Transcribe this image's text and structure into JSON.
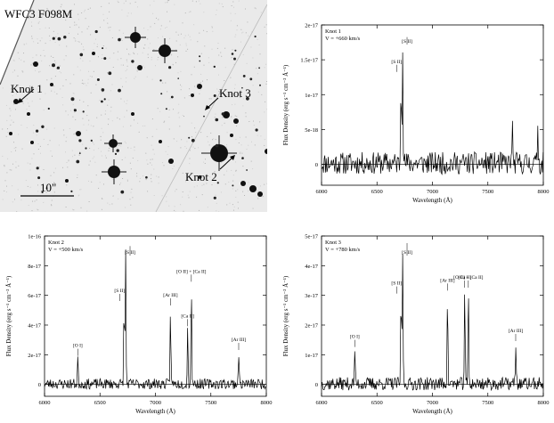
{
  "image_panel": {
    "filter_label": "WFC3 F098M",
    "scale_label": "10\"",
    "knots": [
      {
        "label": "Knot 1"
      },
      {
        "label": "Knot 2"
      },
      {
        "label": "Knot 3"
      }
    ]
  },
  "chart_data": [
    {
      "type": "line",
      "title": "Knot 1",
      "subtitle": "V = +660 km/s",
      "xlabel": "Wavelength (Å)",
      "ylabel": "Flux Density (erg s⁻¹ cm⁻² Å⁻¹)",
      "xlim": [
        6000,
        8000
      ],
      "ylim": [
        -3e-18,
        2e-17
      ],
      "xticks": [
        6000,
        6500,
        7000,
        7500,
        8000
      ],
      "yticks": [
        0,
        5e-18,
        1e-17,
        1.5e-17,
        2e-17
      ],
      "ytick_labels": [
        "0",
        "5e-18",
        "1e-17",
        "1.5e-17",
        "2e-17"
      ],
      "noise_amplitude": 1.6e-18,
      "seed": 11,
      "features": [
        {
          "x": 6717,
          "y": 1.3e-17
        },
        {
          "x": 6731,
          "y": 1.8e-17
        },
        {
          "x": 7720,
          "y": 5.5e-18
        },
        {
          "x": 7950,
          "y": 6e-18
        }
      ],
      "annotations": [
        {
          "text": "[S II]",
          "x": 6717,
          "y": 1.3e-17
        },
        {
          "text": "[S II]",
          "x": 6731,
          "y": 1.8e-17
        }
      ]
    },
    {
      "type": "line",
      "title": "Knot 2",
      "subtitle": "V = +500 km/s",
      "xlabel": "Wavelength (Å)",
      "ylabel": "Flux Density (erg s⁻¹ cm⁻² Å⁻¹)",
      "xlim": [
        6000,
        8000
      ],
      "ylim": [
        -8e-18,
        1e-16
      ],
      "xticks": [
        6000,
        6500,
        7000,
        7500,
        8000
      ],
      "yticks": [
        0,
        2e-17,
        4e-17,
        6e-17,
        8e-17,
        1e-16
      ],
      "ytick_labels": [
        "0",
        "2e-17",
        "4e-17",
        "6e-17",
        "8e-17",
        "1e-16"
      ],
      "noise_amplitude": 3.5e-18,
      "seed": 23,
      "features": [
        {
          "x": 6300,
          "y": 1.8e-17
        },
        {
          "x": 6717,
          "y": 5.5e-17
        },
        {
          "x": 6731,
          "y": 9.2e-17
        },
        {
          "x": 7136,
          "y": 5.2e-17
        },
        {
          "x": 7291,
          "y": 3.8e-17
        },
        {
          "x": 7324,
          "y": 6.8e-17
        },
        {
          "x": 7751,
          "y": 2.2e-17
        }
      ],
      "annotations": [
        {
          "text": "[O I]",
          "x": 6300,
          "y": 1.8e-17
        },
        {
          "text": "[S II]",
          "x": 6717,
          "y": 5.5e-17
        },
        {
          "text": "[S II]",
          "x": 6731,
          "y": 9.2e-17
        },
        {
          "text": "[Ar III]",
          "x": 7136,
          "y": 5.2e-17
        },
        {
          "text": "[Ca II]",
          "x": 7291,
          "y": 3.8e-17
        },
        {
          "text": "[O II] + [Ca II]",
          "x": 7324,
          "y": 6.8e-17
        },
        {
          "text": "[Ar III]",
          "x": 7751,
          "y": 2.2e-17
        }
      ]
    },
    {
      "type": "line",
      "title": "Knot 3",
      "subtitle": "V = +780 km/s",
      "xlabel": "Wavelength (Å)",
      "ylabel": "Flux Density (erg s⁻¹ cm⁻² Å⁻¹)",
      "xlim": [
        6000,
        8000
      ],
      "ylim": [
        -4e-18,
        5e-17
      ],
      "xticks": [
        6000,
        6500,
        7000,
        7500,
        8000
      ],
      "yticks": [
        0,
        1e-17,
        2e-17,
        3e-17,
        4e-17,
        5e-17
      ],
      "ytick_labels": [
        "0",
        "1e-17",
        "2e-17",
        "3e-17",
        "4e-17",
        "5e-17"
      ],
      "noise_amplitude": 2.2e-18,
      "seed": 37,
      "features": [
        {
          "x": 6300,
          "y": 1.2e-17
        },
        {
          "x": 6717,
          "y": 3e-17
        },
        {
          "x": 6731,
          "y": 4.7e-17
        },
        {
          "x": 7136,
          "y": 3.1e-17
        },
        {
          "x": 7291,
          "y": 3.2e-17
        },
        {
          "x": 7324,
          "y": 3.2e-17
        },
        {
          "x": 7751,
          "y": 1.4e-17
        }
      ],
      "annotations": [
        {
          "text": "[O I]",
          "x": 6300,
          "y": 1.2e-17
        },
        {
          "text": "[S II]",
          "x": 6717,
          "y": 3e-17
        },
        {
          "text": "[S II]",
          "x": 6731,
          "y": 4.7e-17
        },
        {
          "text": "[Ar III]",
          "x": 7136,
          "y": 3.1e-17
        },
        {
          "text": "[Ca II]",
          "x": 7291,
          "y": 3.2e-17
        },
        {
          "text": "[O II] + [Ca II]",
          "x": 7324,
          "y": 3.2e-17
        },
        {
          "text": "[Ar III]",
          "x": 7751,
          "y": 1.4e-17
        }
      ]
    }
  ]
}
